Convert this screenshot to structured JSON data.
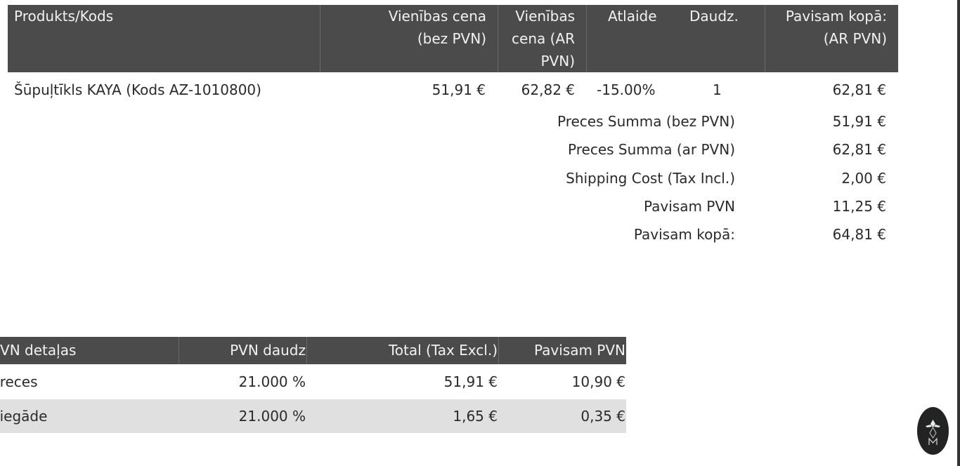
{
  "items_table": {
    "headers": [
      "Produkts/Kods",
      "Vienības cena (bez PVN)",
      "Vienības cena (AR PVN)",
      "Atlaide",
      "Daudz.",
      "Pavisam kopā: (AR PVN)"
    ],
    "header_lines": {
      "unit_ex": [
        "Vienības cena",
        "(bez PVN)"
      ],
      "unit_inc": [
        "Vienības",
        "cena (AR",
        "PVN)"
      ],
      "total": [
        "Pavisam kopā:",
        "(AR PVN)"
      ]
    },
    "rows": [
      {
        "product": "Šūpuļtīkls KAYA (Kods AZ-1010800)",
        "unit_ex": "51,91 €",
        "unit_inc": "62,82 €",
        "discount": "-15.00%",
        "qty": "1",
        "total": "62,81 €"
      }
    ]
  },
  "summary": [
    {
      "label": "Preces Summa (bez PVN)",
      "value": "51,91 €"
    },
    {
      "label": "Preces Summa (ar PVN)",
      "value": "62,81 €"
    },
    {
      "label": "Shipping Cost (Tax Incl.)",
      "value": "2,00 €"
    },
    {
      "label": "Pavisam PVN",
      "value": "11,25 €"
    },
    {
      "label": "Pavisam kopā:",
      "value": "64,81 €"
    }
  ],
  "tax_table": {
    "headers": [
      "PVN detaļas",
      "PVN daudz",
      "Total (Tax Excl.)",
      "Pavisam PVN"
    ],
    "rows": [
      [
        "Preces",
        "21.000 %",
        "51,91 €",
        "10,90 €"
      ],
      [
        "Piegāde",
        "21.000 %",
        "1,65 €",
        "0,35 €"
      ]
    ]
  },
  "colors": {
    "header_bg": "#4b4b4b",
    "alt_row": "#e0e0e0"
  },
  "logo_icon": "brand-logo-icon"
}
